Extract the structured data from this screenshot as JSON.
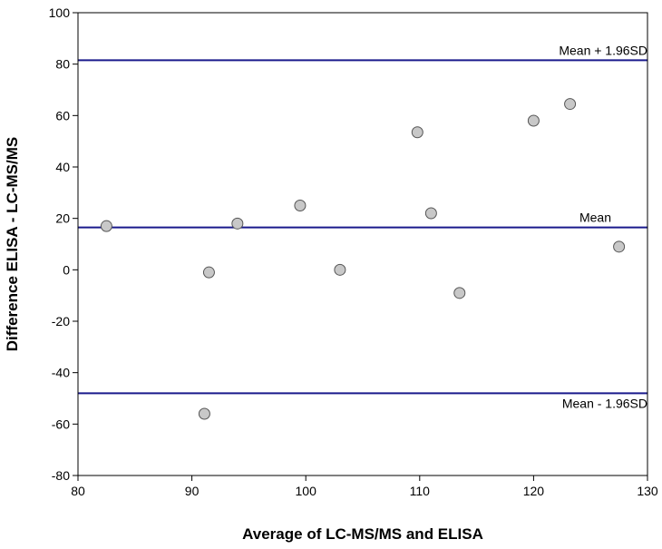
{
  "chart_data": {
    "type": "scatter",
    "title": "",
    "xlabel": "Average of LC-MS/MS and ELISA",
    "ylabel": "Difference ELISA - LC-MS/MS",
    "xlim": [
      80,
      130
    ],
    "ylim": [
      -80,
      100
    ],
    "x_ticks": [
      80,
      90,
      100,
      110,
      120,
      130
    ],
    "y_ticks": [
      -80,
      -60,
      -40,
      -20,
      0,
      20,
      40,
      60,
      80,
      100
    ],
    "grid": false,
    "points": [
      {
        "x": 82.5,
        "y": 17
      },
      {
        "x": 91.5,
        "y": -1
      },
      {
        "x": 91.1,
        "y": -56
      },
      {
        "x": 94.0,
        "y": 18
      },
      {
        "x": 99.5,
        "y": 25
      },
      {
        "x": 103.0,
        "y": 0
      },
      {
        "x": 109.8,
        "y": 53.5
      },
      {
        "x": 111.0,
        "y": 22
      },
      {
        "x": 113.5,
        "y": -9
      },
      {
        "x": 120.0,
        "y": 58
      },
      {
        "x": 123.2,
        "y": 64.5
      },
      {
        "x": 127.5,
        "y": 9
      }
    ],
    "reference_lines": [
      {
        "name": "upper",
        "label": "Mean + 1.96SD",
        "y": 81.5
      },
      {
        "name": "mean",
        "label": "Mean",
        "y": 16.5
      },
      {
        "name": "lower",
        "label": "Mean - 1.96SD",
        "y": -48
      }
    ],
    "colors": {
      "line": "#1a1a8c",
      "marker_fill": "#c8c8c8",
      "marker_stroke": "#555555"
    }
  }
}
